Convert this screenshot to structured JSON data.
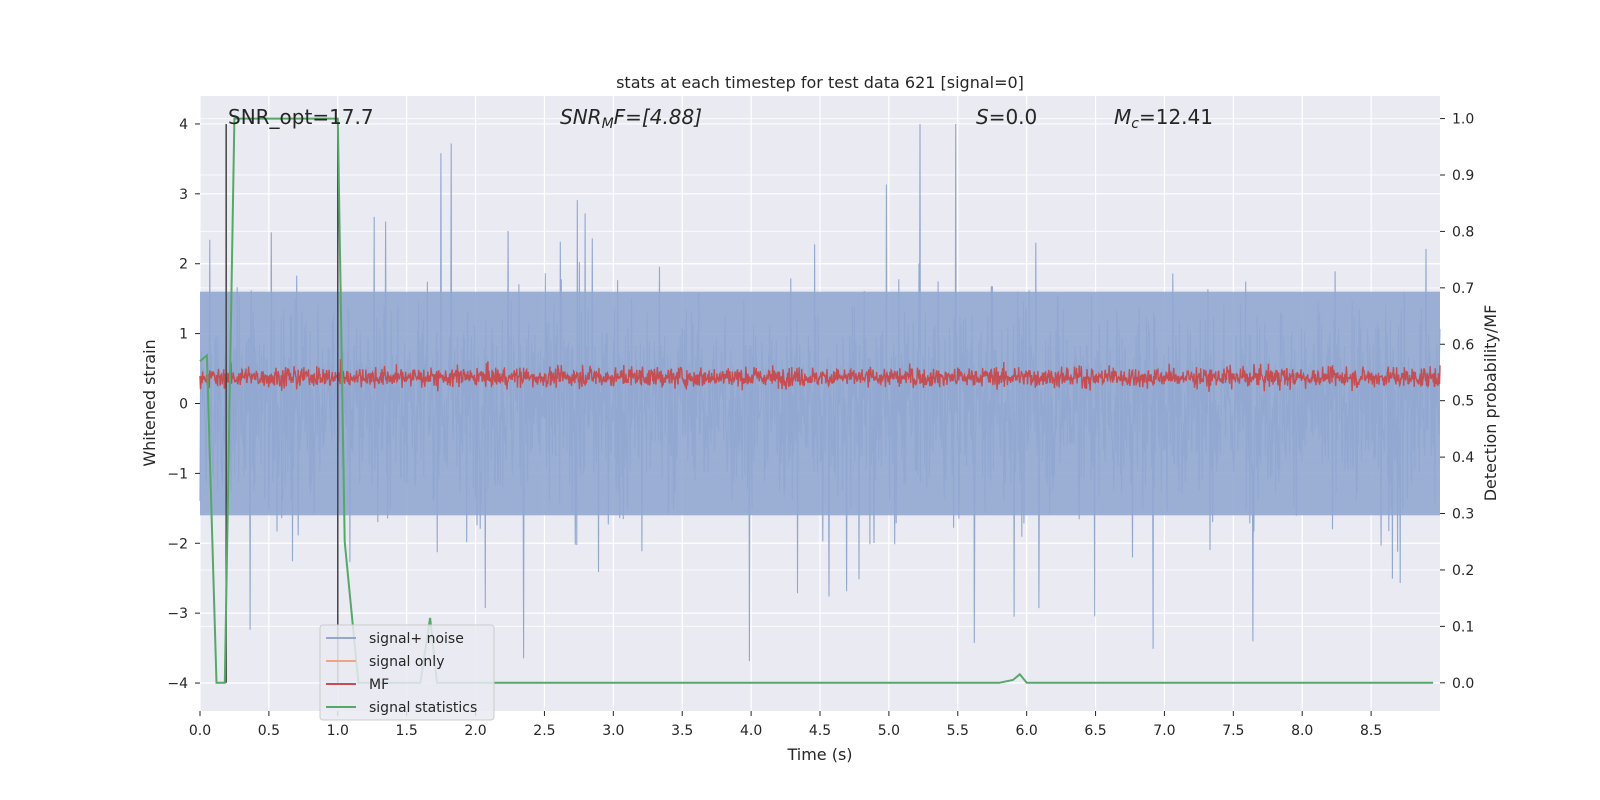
{
  "chart_data": {
    "type": "line",
    "title": "stats at each timestep for test data 621 [signal=0]",
    "xlabel": "Time (s)",
    "ylabel": "Whitened strain",
    "ylabel_right": "Detection probability/MF",
    "xlim": [
      0.0,
      9.0
    ],
    "ylim": [
      -4.4,
      4.4
    ],
    "ylim_right": [
      -0.05,
      1.04
    ],
    "x_ticks": [
      "0.0",
      "0.5",
      "1.0",
      "1.5",
      "2.0",
      "2.5",
      "3.0",
      "3.5",
      "4.0",
      "4.5",
      "5.0",
      "5.5",
      "6.0",
      "6.5",
      "7.0",
      "7.5",
      "8.0",
      "8.5"
    ],
    "x_tick_values": [
      0.0,
      0.5,
      1.0,
      1.5,
      2.0,
      2.5,
      3.0,
      3.5,
      4.0,
      4.5,
      5.0,
      5.5,
      6.0,
      6.5,
      7.0,
      7.5,
      8.0,
      8.5
    ],
    "y_ticks": [
      "−4",
      "−3",
      "−2",
      "−1",
      "0",
      "1",
      "2",
      "3",
      "4"
    ],
    "y_tick_values": [
      -4,
      -3,
      -2,
      -1,
      0,
      1,
      2,
      3,
      4
    ],
    "y_ticks_right": [
      "0.0",
      "0.1",
      "0.2",
      "0.3",
      "0.4",
      "0.5",
      "0.6",
      "0.7",
      "0.8",
      "0.9",
      "1.0"
    ],
    "y_tick_values_right": [
      0.0,
      0.1,
      0.2,
      0.3,
      0.4,
      0.5,
      0.6,
      0.7,
      0.8,
      0.9,
      1.0
    ],
    "grid": true,
    "legend_position": "lower-left",
    "annotations": {
      "snr_opt": "SNR_opt=17.7",
      "snr_mf_main": "SNR",
      "snr_mf_sub": "M",
      "snr_mf_rest": "F=[4.88]",
      "s_main": "S",
      "s_rest": "=0.0",
      "mc_main": "M",
      "mc_sub": "c",
      "mc_rest": "=12.41"
    },
    "vertical_markers_x": [
      0.19,
      1.0
    ],
    "series": [
      {
        "name": "signal+ noise",
        "color": "#92a8d1",
        "axis": "left",
        "kind": "noise",
        "duration": 9.0,
        "sample_count": 2400,
        "approx_envelope": [
          -4.0,
          4.0
        ],
        "dense_band": [
          -1.6,
          1.6
        ]
      },
      {
        "name": "signal only",
        "color": "#f0a582",
        "axis": "left",
        "values": []
      },
      {
        "name": "MF",
        "color": "#c44e52",
        "axis": "right",
        "kind": "noise",
        "duration": 9.0,
        "sample_count": 2400,
        "approx_range": [
          0.51,
          0.58
        ]
      },
      {
        "name": "signal statistics",
        "color": "#55a868",
        "axis": "right",
        "x": [
          0.0,
          0.05,
          0.12,
          0.18,
          0.25,
          0.28,
          1.0,
          1.05,
          1.15,
          1.5,
          1.6,
          1.67,
          1.72,
          1.8,
          2.25,
          5.8,
          5.9,
          5.95,
          6.0,
          6.1,
          8.95
        ],
        "values": [
          0.57,
          0.58,
          0.0,
          0.0,
          1.0,
          1.0,
          1.0,
          0.25,
          0.0,
          0.0,
          0.0,
          0.115,
          0.0,
          0.0,
          0.0,
          0.0,
          0.005,
          0.015,
          0.0,
          0.0,
          0.0
        ]
      }
    ]
  }
}
